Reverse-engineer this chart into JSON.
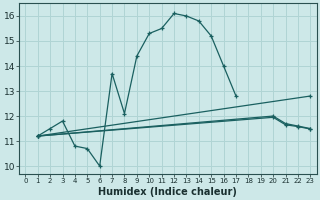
{
  "xlabel": "Humidex (Indice chaleur)",
  "xlim": [
    -0.5,
    23.5
  ],
  "ylim": [
    9.7,
    16.5
  ],
  "xticks": [
    0,
    1,
    2,
    3,
    4,
    5,
    6,
    7,
    8,
    9,
    10,
    11,
    12,
    13,
    14,
    15,
    16,
    17,
    18,
    19,
    20,
    21,
    22,
    23
  ],
  "yticks": [
    10,
    11,
    12,
    13,
    14,
    15,
    16
  ],
  "bg_color": "#cde8e8",
  "grid_color": "#b0d4d4",
  "line_color": "#1a6060",
  "curve1_x": [
    1,
    2,
    3,
    4,
    5,
    6,
    7,
    8,
    9,
    10,
    11,
    12,
    13,
    14,
    15,
    16,
    17
  ],
  "curve1_y": [
    11.2,
    11.5,
    11.8,
    10.8,
    10.7,
    10.0,
    13.7,
    12.1,
    14.4,
    15.3,
    15.5,
    16.1,
    16.0,
    15.8,
    15.2,
    14.0,
    12.8
  ],
  "curve2_x": [
    1,
    23
  ],
  "curve2_y": [
    11.2,
    12.8
  ],
  "curve3_x": [
    1,
    20,
    21,
    22,
    23
  ],
  "curve3_y": [
    11.2,
    12.0,
    11.7,
    11.6,
    11.5
  ],
  "curve4_x": [
    1,
    20,
    21,
    22,
    23
  ],
  "curve4_y": [
    11.2,
    11.95,
    11.65,
    11.58,
    11.48
  ]
}
